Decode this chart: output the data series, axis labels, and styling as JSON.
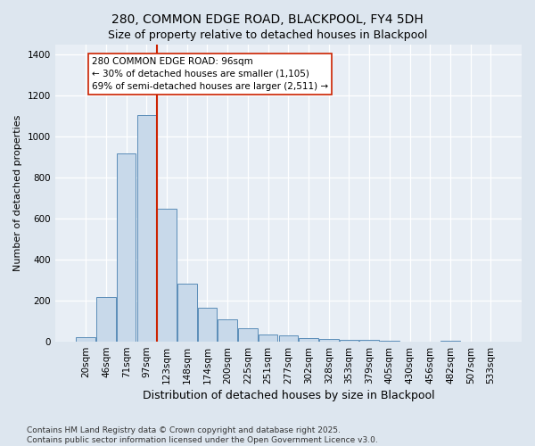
{
  "title": "280, COMMON EDGE ROAD, BLACKPOOL, FY4 5DH",
  "subtitle": "Size of property relative to detached houses in Blackpool",
  "xlabel": "Distribution of detached houses by size in Blackpool",
  "ylabel": "Number of detached properties",
  "categories": [
    "20sqm",
    "46sqm",
    "71sqm",
    "97sqm",
    "123sqm",
    "148sqm",
    "174sqm",
    "200sqm",
    "225sqm",
    "251sqm",
    "277sqm",
    "302sqm",
    "328sqm",
    "353sqm",
    "379sqm",
    "405sqm",
    "430sqm",
    "456sqm",
    "482sqm",
    "507sqm",
    "533sqm"
  ],
  "values": [
    20,
    220,
    920,
    1105,
    650,
    285,
    165,
    110,
    65,
    35,
    30,
    18,
    15,
    10,
    8,
    5,
    0,
    0,
    5,
    0,
    0
  ],
  "bar_color": "#c8d9ea",
  "bar_edge_color": "#5b8db8",
  "vline_x": 3.5,
  "vline_color": "#cc2200",
  "annotation_text": "280 COMMON EDGE ROAD: 96sqm\n← 30% of detached houses are smaller (1,105)\n69% of semi-detached houses are larger (2,511) →",
  "annotation_box_facecolor": "#ffffff",
  "annotation_box_edgecolor": "#cc2200",
  "ylim": [
    0,
    1450
  ],
  "yticks": [
    0,
    200,
    400,
    600,
    800,
    1000,
    1200,
    1400
  ],
  "footer_line1": "Contains HM Land Registry data © Crown copyright and database right 2025.",
  "footer_line2": "Contains public sector information licensed under the Open Government Licence v3.0.",
  "fig_bg_color": "#dde6ef",
  "plot_bg_color": "#e8eef5",
  "title_fontsize": 10,
  "subtitle_fontsize": 9,
  "ylabel_fontsize": 8,
  "xlabel_fontsize": 9,
  "tick_fontsize": 7.5,
  "annotation_fontsize": 7.5,
  "footer_fontsize": 6.5
}
